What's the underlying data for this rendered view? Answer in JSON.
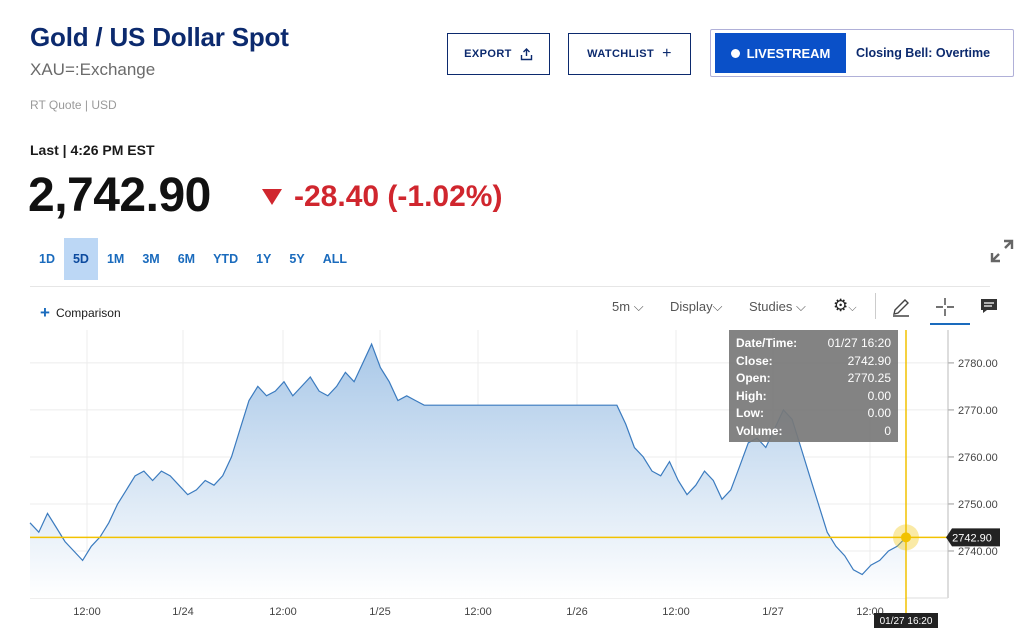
{
  "header": {
    "title": "Gold / US Dollar Spot",
    "exchange": "XAU=:Exchange",
    "quote_type": "RT Quote | USD"
  },
  "buttons": {
    "export": "EXPORT",
    "watchlist": "WATCHLIST"
  },
  "livestream": {
    "badge": "LIVESTREAM",
    "show": "Closing Bell: Overtime"
  },
  "quote": {
    "last_label": "Last | 4:26 PM EST",
    "price": "2,742.90",
    "change": "-28.40 (-1.02%)",
    "direction": "down",
    "color_down": "#d0262e"
  },
  "ranges": {
    "items": [
      "1D",
      "5D",
      "1M",
      "3M",
      "6M",
      "YTD",
      "1Y",
      "5Y",
      "ALL"
    ],
    "active": "5D"
  },
  "toolbar": {
    "comparison": "Comparison",
    "interval": "5m",
    "display": "Display",
    "studies": "Studies"
  },
  "tooltip": {
    "rows": [
      {
        "label": "Date/Time:",
        "value": "01/27 16:20"
      },
      {
        "label": "Close:",
        "value": "2742.90"
      },
      {
        "label": "Open:",
        "value": "2770.25"
      },
      {
        "label": "High:",
        "value": "0.00"
      },
      {
        "label": "Low:",
        "value": "0.00"
      },
      {
        "label": "Volume:",
        "value": "0"
      }
    ]
  },
  "chart_data": {
    "type": "area",
    "line_color": "#3b7bbf",
    "crosshair_color": "#f2c200",
    "ylim": [
      2730,
      2787
    ],
    "y_ticks": [
      "2780.00",
      "2770.00",
      "2760.00",
      "2750.00",
      "2740.00"
    ],
    "x_ticks": [
      "12:00",
      "1/24",
      "12:00",
      "1/25",
      "12:00",
      "1/26",
      "12:00",
      "1/27",
      "12:00"
    ],
    "current_value_label": "2742.90",
    "crosshair_x_label": "01/27 16:20",
    "series": [
      {
        "values": [
          2746,
          2744,
          2748,
          2745,
          2742,
          2740,
          2738,
          2741,
          2743,
          2746,
          2750,
          2753,
          2756,
          2757,
          2755,
          2757,
          2756,
          2754,
          2752,
          2753,
          2755,
          2754,
          2756,
          2760,
          2766,
          2772,
          2775,
          2773,
          2774,
          2776,
          2773,
          2775,
          2777,
          2774,
          2773,
          2775,
          2778,
          2776,
          2780,
          2784,
          2779,
          2776,
          2772,
          2773,
          2772,
          2771,
          2771,
          2771,
          2771,
          2771,
          2771,
          2771,
          2771,
          2771,
          2771,
          2771,
          2771,
          2771,
          2771,
          2771,
          2771,
          2771,
          2771,
          2771,
          2771,
          2771,
          2771,
          2771,
          2767,
          2762,
          2760,
          2757,
          2756,
          2759,
          2755,
          2752,
          2754,
          2757,
          2755,
          2751,
          2753,
          2758,
          2763,
          2764,
          2762,
          2766,
          2770,
          2768,
          2762,
          2756,
          2750,
          2744,
          2741,
          2739,
          2736,
          2735,
          2737,
          2738,
          2740,
          2741,
          2742.9
        ]
      }
    ]
  }
}
